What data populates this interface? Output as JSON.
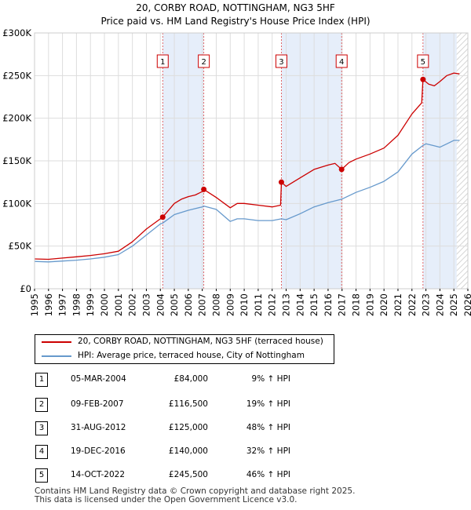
{
  "chart_data": {
    "type": "line",
    "title": "20, CORBY ROAD, NOTTINGHAM, NG3 5HF",
    "subtitle": "Price paid vs. HM Land Registry's House Price Index (HPI)",
    "xlim": [
      1995,
      2026
    ],
    "ylim": [
      0,
      300000
    ],
    "x_ticks": [
      "1995",
      "1996",
      "1997",
      "1998",
      "1999",
      "2000",
      "2001",
      "2002",
      "2003",
      "2004",
      "2005",
      "2006",
      "2007",
      "2008",
      "2009",
      "2010",
      "2011",
      "2012",
      "2013",
      "2014",
      "2015",
      "2016",
      "2017",
      "2018",
      "2019",
      "2020",
      "2021",
      "2022",
      "2023",
      "2024",
      "2025",
      "2026"
    ],
    "y_ticks": [
      {
        "value": 0,
        "label": "£0"
      },
      {
        "value": 50000,
        "label": "£50K"
      },
      {
        "value": 100000,
        "label": "£100K"
      },
      {
        "value": 150000,
        "label": "£150K"
      },
      {
        "value": 200000,
        "label": "£200K"
      },
      {
        "value": 250000,
        "label": "£250K"
      },
      {
        "value": 300000,
        "label": "£300K"
      }
    ],
    "series": [
      {
        "name": "20, CORBY ROAD, NOTTINGHAM, NG3 5HF (terraced house)",
        "color": "#cc0000",
        "x": [
          1995.0,
          1996.0,
          1997.0,
          1998.0,
          1999.0,
          2000.0,
          2001.0,
          2002.0,
          2003.0,
          2004.0,
          2004.17,
          2005.0,
          2005.5,
          2006.0,
          2006.5,
          2007.0,
          2007.11,
          2008.0,
          2009.0,
          2009.5,
          2010.0,
          2011.0,
          2012.0,
          2012.6,
          2012.66,
          2013.0,
          2014.0,
          2015.0,
          2016.0,
          2016.5,
          2016.97,
          2017.5,
          2018.0,
          2019.0,
          2020.0,
          2021.0,
          2022.0,
          2022.7,
          2022.79,
          2023.2,
          2023.6,
          2024.0,
          2024.5,
          2025.0,
          2025.4
        ],
        "values": [
          35000,
          34500,
          36000,
          37500,
          39000,
          41000,
          44000,
          55000,
          70000,
          82000,
          84000,
          100000,
          105000,
          108000,
          110000,
          114000,
          116500,
          107000,
          95000,
          100000,
          100000,
          98000,
          96000,
          98000,
          125000,
          120000,
          130000,
          140000,
          145000,
          147000,
          140000,
          148000,
          152000,
          158000,
          165000,
          180000,
          205000,
          218000,
          245500,
          240000,
          238000,
          243000,
          250000,
          253000,
          252000
        ]
      },
      {
        "name": "HPI: Average price, terraced house, City of Nottingham",
        "color": "#6699cc",
        "x": [
          1995.0,
          1996.0,
          1997.0,
          1998.0,
          1999.0,
          2000.0,
          2001.0,
          2002.0,
          2003.0,
          2004.0,
          2004.17,
          2005.0,
          2006.0,
          2007.0,
          2007.11,
          2008.0,
          2009.0,
          2009.5,
          2010.0,
          2011.0,
          2012.0,
          2012.66,
          2013.0,
          2014.0,
          2015.0,
          2016.0,
          2016.97,
          2018.0,
          2019.0,
          2020.0,
          2021.0,
          2022.0,
          2022.79,
          2023.0,
          2023.5,
          2024.0,
          2024.5,
          2025.0,
          2025.4
        ],
        "values": [
          32000,
          31500,
          32500,
          33500,
          35000,
          37000,
          40000,
          50000,
          63000,
          76000,
          77000,
          87000,
          92000,
          96000,
          97000,
          93000,
          79000,
          82000,
          82000,
          80000,
          80000,
          82000,
          81000,
          88000,
          96000,
          101000,
          105000,
          113000,
          119000,
          126000,
          137000,
          158000,
          168000,
          170000,
          168000,
          166000,
          170000,
          174000,
          174000
        ]
      }
    ],
    "sales": [
      {
        "label": "1",
        "x": 2004.17,
        "value": 84000
      },
      {
        "label": "2",
        "x": 2007.11,
        "value": 116500
      },
      {
        "label": "3",
        "x": 2012.66,
        "value": 125000
      },
      {
        "label": "4",
        "x": 2016.97,
        "value": 140000
      },
      {
        "label": "5",
        "x": 2022.79,
        "value": 245500
      }
    ],
    "shaded_ranges": [
      [
        2004.17,
        2007.11
      ],
      [
        2012.66,
        2016.97
      ],
      [
        2022.79,
        2025.2
      ]
    ],
    "hatch_from": 2025.2
  },
  "legend": {
    "items": [
      {
        "label": "20, CORBY ROAD, NOTTINGHAM, NG3 5HF (terraced house)",
        "color": "#cc0000"
      },
      {
        "label": "HPI: Average price, terraced house, City of Nottingham",
        "color": "#6699cc"
      }
    ]
  },
  "table": {
    "rows": [
      {
        "num": "1",
        "date": "05-MAR-2004",
        "price": "£84,000",
        "hpi": "9% ↑ HPI"
      },
      {
        "num": "2",
        "date": "09-FEB-2007",
        "price": "£116,500",
        "hpi": "19% ↑ HPI"
      },
      {
        "num": "3",
        "date": "31-AUG-2012",
        "price": "£125,000",
        "hpi": "48% ↑ HPI"
      },
      {
        "num": "4",
        "date": "19-DEC-2016",
        "price": "£140,000",
        "hpi": "32% ↑ HPI"
      },
      {
        "num": "5",
        "date": "14-OCT-2022",
        "price": "£245,500",
        "hpi": "46% ↑ HPI"
      }
    ]
  },
  "footer": {
    "line1": "Contains HM Land Registry data © Crown copyright and database right 2025.",
    "line2": "This data is licensed under the Open Government Licence v3.0."
  }
}
